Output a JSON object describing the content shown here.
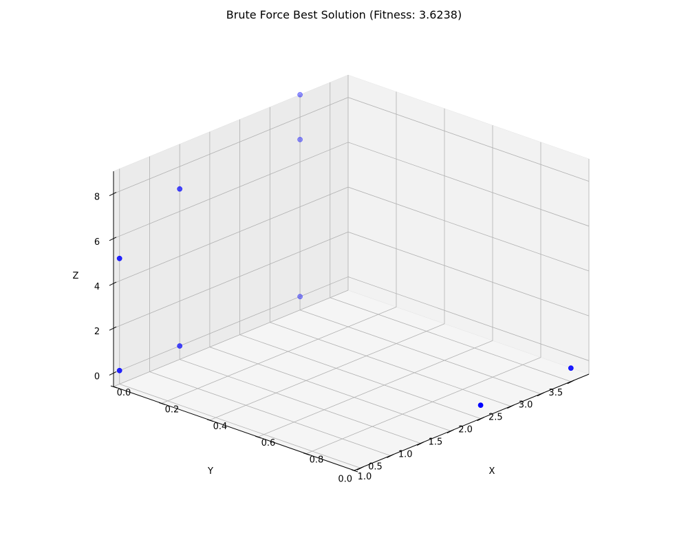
{
  "chart_data": {
    "type": "scatter",
    "projection": "3d",
    "title": "Brute Force Best Solution (Fitness: 3.6238)",
    "xlabel": "X",
    "ylabel": "Y",
    "zlabel": "Z",
    "xlim": [
      0.0,
      1.0
    ],
    "ylim": [
      -0.1,
      3.8
    ],
    "zlim": [
      -0.6,
      9.0
    ],
    "x_ticks": [
      "0.0",
      "0.2",
      "0.4",
      "0.6",
      "0.8",
      "1.0"
    ],
    "y_ticks": [
      "0.0",
      "0.5",
      "1.0",
      "1.5",
      "2.0",
      "2.5",
      "3.0",
      "3.5"
    ],
    "z_ticks": [
      "0",
      "2",
      "4",
      "6",
      "8"
    ],
    "grid": true,
    "marker_color": "#0000ff",
    "points": [
      {
        "x": 0.0,
        "y": 0.0,
        "z": 0.0
      },
      {
        "x": 0.0,
        "y": 1.0,
        "z": 0.0
      },
      {
        "x": 0.0,
        "y": 3.0,
        "z": 0.0
      },
      {
        "x": 0.0,
        "y": 3.0,
        "z": 7.0
      },
      {
        "x": 0.0,
        "y": 3.0,
        "z": 9.0
      },
      {
        "x": 0.0,
        "y": 0.0,
        "z": 5.0
      },
      {
        "x": 0.0,
        "y": 1.0,
        "z": 7.0
      },
      {
        "x": 1.0,
        "y": 2.0,
        "z": 0.0
      },
      {
        "x": 1.0,
        "y": 3.5,
        "z": 0.0
      }
    ]
  }
}
